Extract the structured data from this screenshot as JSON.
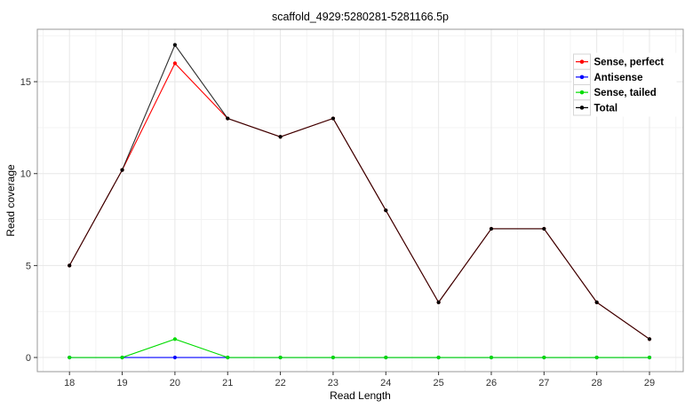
{
  "chart_data": {
    "type": "line",
    "title": "scaffold_4929:5280281-5281166.5p",
    "xlabel": "Read Length",
    "ylabel": "Read coverage",
    "x": [
      18,
      19,
      20,
      21,
      22,
      23,
      24,
      25,
      26,
      27,
      28,
      29
    ],
    "series": [
      {
        "name": "Sense, perfect",
        "color": "#ff0000",
        "values": [
          5,
          10.2,
          16,
          13,
          12,
          13,
          8,
          3,
          7,
          7,
          3,
          1
        ]
      },
      {
        "name": "Antisense",
        "color": "#0000ff",
        "values": [
          0,
          0,
          0,
          0,
          0,
          0,
          0,
          0,
          0,
          0,
          0,
          0
        ]
      },
      {
        "name": "Sense, tailed",
        "color": "#00dc00",
        "values": [
          0,
          0,
          1,
          0,
          0,
          0,
          0,
          0,
          0,
          0,
          0,
          0
        ]
      },
      {
        "name": "Total",
        "color": "#000000",
        "overlay_opacity": 0.82,
        "values": [
          5,
          10.2,
          17,
          13,
          12,
          13,
          8,
          3,
          7,
          7,
          3,
          1
        ]
      }
    ],
    "x_ticks": [
      18,
      19,
      20,
      21,
      22,
      23,
      24,
      25,
      26,
      27,
      28,
      29
    ],
    "y_ticks": [
      0,
      5,
      10,
      15
    ],
    "xlim": [
      17.39,
      29.64
    ],
    "ylim": [
      -0.77,
      17.85
    ],
    "grid": {
      "on": true,
      "major_color": "#e7e7e7",
      "minor_color": "#f3f3f3"
    },
    "panel_border_color": "#999999",
    "tick_color": "#333333",
    "legend": {
      "position": "upper-right",
      "entries": [
        "Sense, perfect",
        "Antisense",
        "Sense, tailed",
        "Total"
      ],
      "key_box_fill": "#ffffff",
      "key_box_border": "#d6d6d6"
    }
  }
}
